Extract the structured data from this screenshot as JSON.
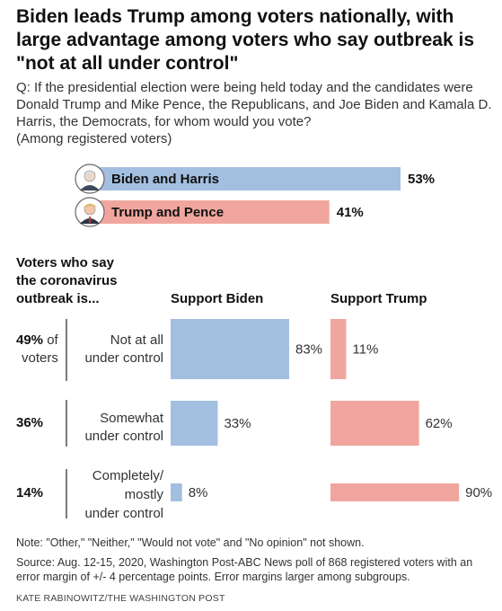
{
  "title": "Biden leads Trump among voters nationally, with large advantage among voters who say outbreak is \"not at all under control\"",
  "question": {
    "text": "Q: If the presidential election were being held today and the candidates were Donald Trump and Mike Pence, the Republicans, and Joe Biden and Kamala D. Harris, the Democrats, for whom would you vote?",
    "subtext": "(Among registered voters)"
  },
  "colors": {
    "biden": "#a3bfe0",
    "trump": "#f0a69e",
    "text": "#222222"
  },
  "chart_data": [
    {
      "type": "bar",
      "orientation": "horizontal",
      "categories": [
        "Biden and Harris",
        "Trump and Pence"
      ],
      "values": [
        53,
        41
      ],
      "value_labels": [
        "53%",
        "41%"
      ],
      "icons": [
        "biden-portrait-icon",
        "trump-portrait-icon"
      ]
    },
    {
      "type": "bar",
      "orientation": "horizontal",
      "row_header": [
        "Voters who say",
        "the coronavirus",
        "outbreak is..."
      ],
      "rows": [
        {
          "share_value": "49%",
          "share_suffix": " of",
          "share_suffix2": "voters",
          "label_lines": [
            "Not at all",
            "under control"
          ]
        },
        {
          "share_value": "36%",
          "share_suffix": "",
          "share_suffix2": "",
          "label_lines": [
            "Somewhat",
            "under control"
          ]
        },
        {
          "share_value": "14%",
          "share_suffix": "",
          "share_suffix2": "",
          "label_lines": [
            "Completely/",
            "mostly",
            "under control"
          ]
        }
      ],
      "series": [
        {
          "name": "Support Biden",
          "values": [
            83,
            33,
            8
          ],
          "labels": [
            "83%",
            "33%",
            "8%"
          ]
        },
        {
          "name": "Support Trump",
          "values": [
            11,
            62,
            90
          ],
          "labels": [
            "11%",
            "62%",
            "90%"
          ]
        }
      ]
    }
  ],
  "notes": {
    "note": "Note: \"Other,\" \"Neither,\" \"Would not vote\" and \"No opinion\" not shown.",
    "source": "Source: Aug. 12-15, 2020, Washington Post-ABC News poll of 868 registered voters with an error margin of +/- 4 percentage points. Error margins larger among subgroups.",
    "credit": "KATE RABINOWITZ/THE WASHINGTON POST"
  }
}
